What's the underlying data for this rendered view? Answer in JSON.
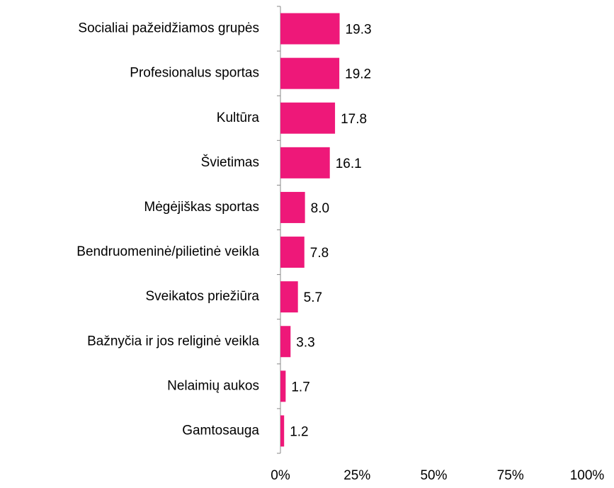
{
  "chart_data": {
    "type": "bar",
    "orientation": "horizontal",
    "categories": [
      "Socialiai pažeidžiamos grupės",
      "Profesionalus sportas",
      "Kultūra",
      "Švietimas",
      "Mėgėjiškas sportas",
      "Bendruomeninė/pilietinė veikla",
      "Sveikatos priežiūra",
      "Bažnyčia ir jos religinė veikla",
      "Nelaimių aukos",
      "Gamtosauga"
    ],
    "values": [
      19.3,
      19.2,
      17.8,
      16.1,
      8.0,
      7.8,
      5.7,
      3.3,
      1.7,
      1.2
    ],
    "value_labels": [
      "19.3",
      "19.2",
      "17.8",
      "16.1",
      "8.0",
      "7.8",
      "5.7",
      "3.3",
      "1.7",
      "1.2"
    ],
    "color": "#ee1879",
    "xlim": [
      0,
      100
    ],
    "xticks": [
      {
        "value": 0,
        "label": "0%"
      },
      {
        "value": 25,
        "label": "25%"
      },
      {
        "value": 50,
        "label": "50%"
      },
      {
        "value": 75,
        "label": "75%"
      },
      {
        "value": 100,
        "label": "100%"
      }
    ],
    "grid": false
  }
}
